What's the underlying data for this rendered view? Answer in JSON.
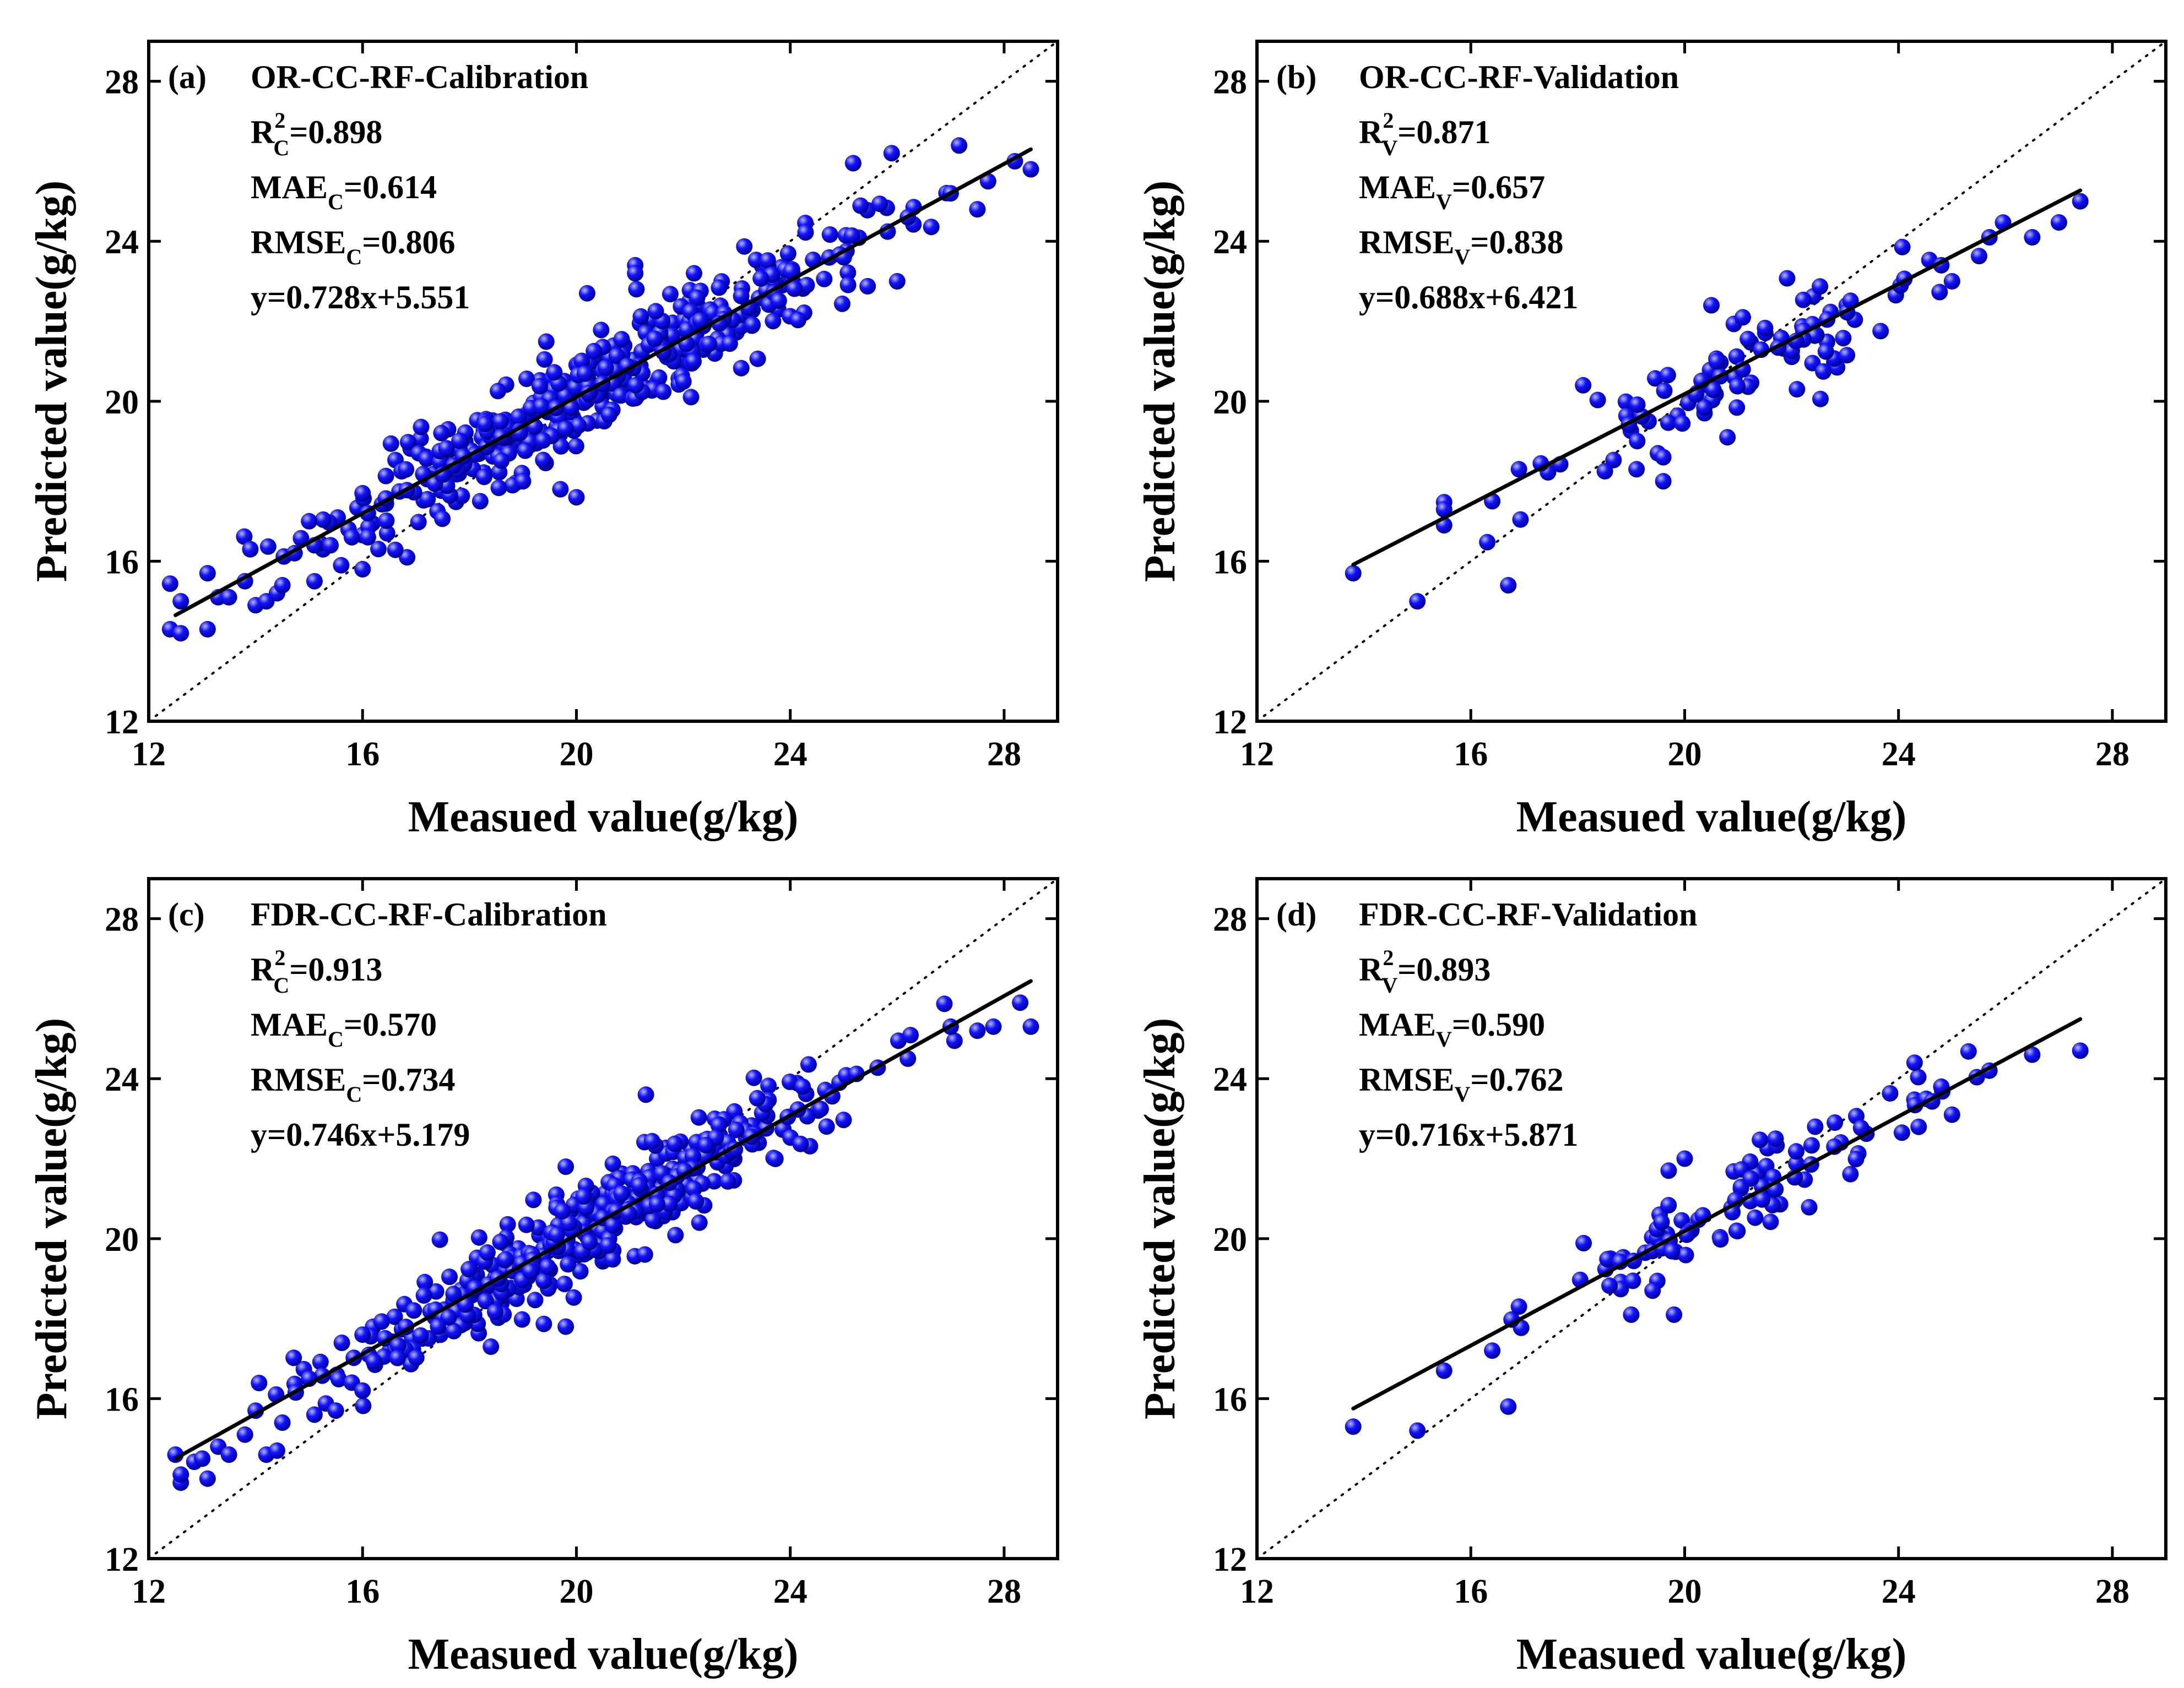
{
  "chart_data": [
    {
      "panel_label": "(a)",
      "title": "OR-CC-RF-Calibration",
      "type": "scatter",
      "xlabel": "Measued value(g/kg)",
      "ylabel": "Predicted value(g/kg)",
      "xlim": [
        12,
        29
      ],
      "ylim": [
        12,
        29
      ],
      "xticks": [
        12,
        16,
        20,
        24,
        28
      ],
      "yticks": [
        12,
        16,
        20,
        24,
        28
      ],
      "stats": [
        {
          "base": "R",
          "sup": "2",
          "sub": "C",
          "rest": "=0.898"
        },
        {
          "base": "MAE",
          "sub": "C",
          "rest": "=0.614"
        },
        {
          "base": "RMSE",
          "sub": "C",
          "rest": "=0.806"
        },
        {
          "base": "y=0.728x+5.551"
        }
      ],
      "fit": {
        "slope": 0.728,
        "intercept": 5.551,
        "x_range": [
          12.5,
          28.5
        ]
      },
      "sample": {
        "seed": 11,
        "n": 420,
        "mean": 20.2,
        "sd": 2.4,
        "min": 12.4,
        "max": 28.6,
        "resid": 0.75,
        "x": [
          12.4,
          12.6,
          12.6,
          13.1,
          13.1,
          13.3,
          13.5,
          13.8,
          13.9,
          14.0,
          14.2,
          14.4,
          14.5,
          15.0,
          15.1,
          15.1,
          15.4,
          15.6,
          15.8,
          16.0,
          16.0,
          16.1,
          16.1,
          18.2,
          19.0,
          19.7,
          20.0,
          20.2,
          21.1,
          21.1,
          22.2,
          25.0,
          26.0,
          26.2,
          27.0,
          27.5,
          27.7,
          28.2,
          28.5
        ],
        "y": [
          14.3,
          15.0,
          14.2,
          15.7,
          14.3,
          15.1,
          15.1,
          15.5,
          16.3,
          14.9,
          15.0,
          15.2,
          15.4,
          17.0,
          15.5,
          16.4,
          16.4,
          15.9,
          16.6,
          17.7,
          15.8,
          17.2,
          16.6,
          17.5,
          18.0,
          17.8,
          17.6,
          22.7,
          23.4,
          23.2,
          23.2,
          23.6,
          23.0,
          24.6,
          25.2,
          24.8,
          25.5,
          26.0,
          25.8
        ]
      }
    },
    {
      "panel_label": "(b)",
      "title": "OR-CC-RF-Validation",
      "type": "scatter",
      "xlabel": "Measued value(g/kg)",
      "ylabel": "Predicted value(g/kg)",
      "xlim": [
        12,
        29
      ],
      "ylim": [
        12,
        29
      ],
      "xticks": [
        12,
        16,
        20,
        24,
        28
      ],
      "yticks": [
        12,
        16,
        20,
        24,
        28
      ],
      "stats": [
        {
          "base": "R",
          "sup": "2",
          "sub": "V",
          "rest": "=0.871"
        },
        {
          "base": "MAE",
          "sub": "V",
          "rest": "=0.657"
        },
        {
          "base": "RMSE",
          "sub": "V",
          "rest": "=0.838"
        },
        {
          "base": "y=0.688x+6.421"
        }
      ],
      "fit": {
        "slope": 0.688,
        "intercept": 6.421,
        "x_range": [
          13.8,
          27.4
        ]
      },
      "sample": {
        "seed": 22,
        "n": 95,
        "mean": 20.8,
        "sd": 2.1,
        "min": 15.5,
        "max": 27.0,
        "resid": 0.7,
        "x": [
          13.8,
          15.0,
          15.5,
          16.4,
          16.7,
          16.9,
          18.1,
          19.1,
          19.5,
          19.6,
          19.6,
          20.5,
          20.6,
          20.8,
          22.1,
          24.8,
          25.0,
          25.7,
          26.5,
          27.4
        ],
        "y": [
          15.7,
          15.0,
          16.9,
          17.5,
          15.4,
          18.3,
          20.4,
          18.3,
          18.7,
          18.0,
          18.6,
          22.4,
          21.0,
          19.1,
          20.3,
          23.4,
          23.0,
          24.1,
          24.1,
          25.0
        ]
      }
    },
    {
      "panel_label": "(c)",
      "title": "FDR-CC-RF-Calibration",
      "type": "scatter",
      "xlabel": "Measued value(g/kg)",
      "ylabel": "Predicted value(g/kg)",
      "xlim": [
        12,
        29
      ],
      "ylim": [
        12,
        29
      ],
      "xticks": [
        12,
        16,
        20,
        24,
        28
      ],
      "yticks": [
        12,
        16,
        20,
        24,
        28
      ],
      "stats": [
        {
          "base": "R",
          "sup": "2",
          "sub": "C",
          "rest": "=0.913"
        },
        {
          "base": "MAE",
          "sub": "C",
          "rest": "=0.570"
        },
        {
          "base": "RMSE",
          "sub": "C",
          "rest": "=0.734"
        },
        {
          "base": "y=0.746x+5.179"
        }
      ],
      "fit": {
        "slope": 0.746,
        "intercept": 5.179,
        "x_range": [
          12.5,
          28.5
        ]
      },
      "sample": {
        "seed": 33,
        "n": 420,
        "mean": 20.2,
        "sd": 2.4,
        "min": 12.4,
        "max": 28.6,
        "resid": 0.7,
        "x": [
          12.5,
          12.6,
          12.6,
          13.0,
          13.1,
          13.3,
          13.5,
          13.8,
          14.0,
          14.2,
          14.4,
          14.5,
          15.0,
          15.1,
          15.5,
          15.8,
          16.0,
          16.0,
          18.4,
          19.8,
          19.8,
          21.3,
          22.3,
          26.2,
          27.0,
          27.5,
          27.8,
          28.3,
          28.5
        ],
        "y": [
          14.6,
          13.9,
          14.1,
          14.5,
          14.0,
          14.8,
          14.6,
          15.1,
          15.7,
          14.6,
          14.7,
          15.4,
          16.5,
          15.6,
          15.7,
          16.4,
          17.6,
          16.2,
          17.3,
          17.8,
          21.8,
          23.6,
          20.4,
          24.5,
          25.3,
          25.2,
          25.3,
          25.9,
          25.3
        ]
      }
    },
    {
      "panel_label": "(d)",
      "title": "FDR-CC-RF-Validation",
      "type": "scatter",
      "xlabel": "Measued value(g/kg)",
      "ylabel": "Predicted value(g/kg)",
      "xlim": [
        12,
        29
      ],
      "ylim": [
        12,
        29
      ],
      "xticks": [
        12,
        16,
        20,
        24,
        28
      ],
      "yticks": [
        12,
        16,
        20,
        24,
        28
      ],
      "stats": [
        {
          "base": "R",
          "sup": "2",
          "sub": "V",
          "rest": "=0.893"
        },
        {
          "base": "MAE",
          "sub": "V",
          "rest": "=0.590"
        },
        {
          "base": "RMSE",
          "sub": "V",
          "rest": "=0.762"
        },
        {
          "base": "y=0.716x+5.871"
        }
      ],
      "fit": {
        "slope": 0.716,
        "intercept": 5.871,
        "x_range": [
          13.8,
          27.4
        ]
      },
      "sample": {
        "seed": 44,
        "n": 95,
        "mean": 20.8,
        "sd": 2.1,
        "min": 15.5,
        "max": 27.0,
        "resid": 0.65,
        "x": [
          13.8,
          15.0,
          15.5,
          16.4,
          16.7,
          16.9,
          19.0,
          19.4,
          19.7,
          19.8,
          20.0,
          21.7,
          24.3,
          24.8,
          25.0,
          25.7,
          26.5,
          27.4
        ],
        "y": [
          15.3,
          15.2,
          16.7,
          17.2,
          15.8,
          18.3,
          18.1,
          18.7,
          21.7,
          18.1,
          22.0,
          22.5,
          24.4,
          23.8,
          23.1,
          24.2,
          24.6,
          24.7
        ]
      }
    }
  ],
  "colors": {
    "points": "#1414ff",
    "points_highlight": "#b7b7ff",
    "points_edge": "#00008c",
    "fit_line": "#000000",
    "ref_line": "#000000"
  },
  "marker_shape": "shaded-sphere"
}
